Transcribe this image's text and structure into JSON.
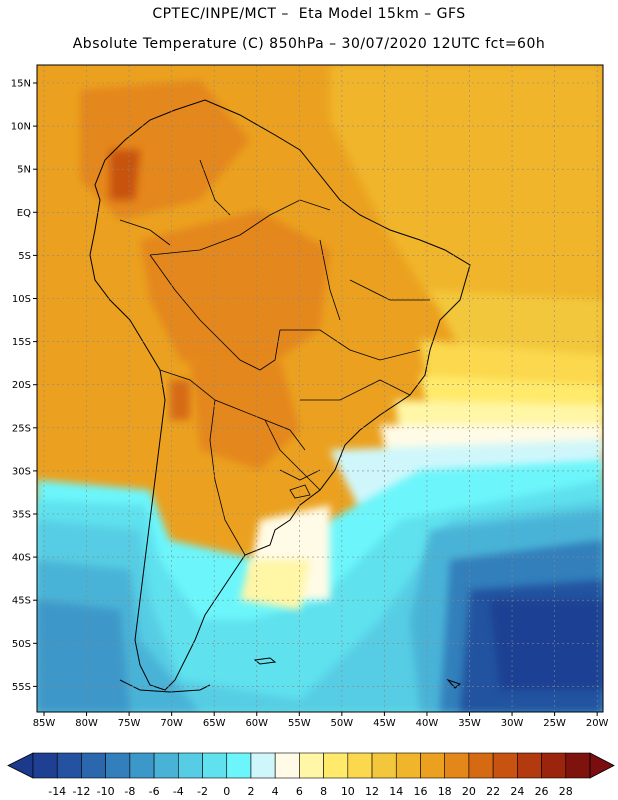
{
  "header": {
    "line1": "CPTEC/INPE/MCT –  Eta Model 15km – GFS",
    "line2": "Absolute Temperature (C) 850hPa – 30/07/2020 12UTC fct=60h"
  },
  "lat_labels": [
    "15N",
    "10N",
    "5N",
    "EQ",
    "5S",
    "10S",
    "15S",
    "20S",
    "25S",
    "30S",
    "35S",
    "40S",
    "45S",
    "50S",
    "55S"
  ],
  "lon_labels": [
    "85W",
    "80W",
    "75W",
    "70W",
    "65W",
    "60W",
    "55W",
    "50W",
    "45W",
    "40W",
    "35W",
    "30W",
    "25W",
    "20W"
  ],
  "colorbar": {
    "labels": [
      "-14",
      "-12",
      "-10",
      "-8",
      "-6",
      "-4",
      "-2",
      "0",
      "2",
      "4",
      "6",
      "8",
      "10",
      "12",
      "14",
      "16",
      "18",
      "20",
      "22",
      "24",
      "26",
      "28"
    ],
    "low_color": "#1b3a8c",
    "high_color": "#7a0d10",
    "colors": [
      "#1f3f93",
      "#2452a0",
      "#2b67ad",
      "#337fbb",
      "#3c98c9",
      "#48b3d7",
      "#56cde4",
      "#5fe1ee",
      "#6cf6fb",
      "#cff7fb",
      "#fffbe6",
      "#fff6a6",
      "#ffea6b",
      "#fbd84d",
      "#f3c73b",
      "#f0b52a",
      "#eba11f",
      "#e4871a",
      "#d66a13",
      "#c85210",
      "#b23a0e",
      "#9a240c",
      "#7e120c"
    ]
  }
}
